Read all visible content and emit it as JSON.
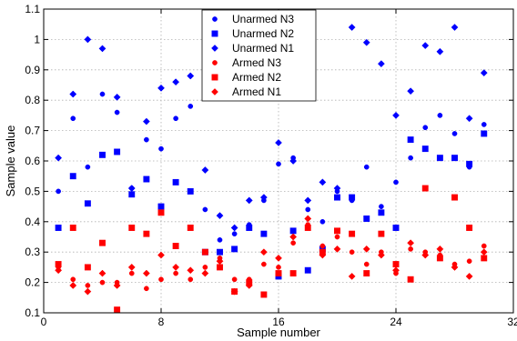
{
  "chart_data": {
    "type": "scatter",
    "title": "",
    "xlabel": "Sample number",
    "ylabel": "Sample value",
    "xlim": [
      0,
      32
    ],
    "ylim": [
      0.1,
      1.1
    ],
    "xticks": [
      0,
      8,
      16,
      24,
      32
    ],
    "yticks": [
      0.1,
      0.2,
      0.3,
      0.4,
      0.5,
      0.6,
      0.7,
      0.8,
      0.9,
      1.0,
      1.1
    ],
    "xtick_labels": [
      "0",
      "8",
      "16",
      "24",
      "32"
    ],
    "ytick_labels": [
      "0.1",
      "0.2",
      "0.3",
      "0.4",
      "0.5",
      "0.6",
      "0.7",
      "0.8",
      "0.9",
      "1",
      "1.1"
    ],
    "grid": true,
    "legend_position": "top-center",
    "series": [
      {
        "name": "Unarmed N3",
        "color": "#0000ff",
        "marker": "circle",
        "x": [
          1,
          2,
          3,
          4,
          5,
          6,
          7,
          8,
          9,
          10,
          11,
          12,
          13,
          14,
          15,
          16,
          17,
          18,
          19,
          20,
          21,
          22,
          23,
          24,
          25,
          26,
          27,
          28,
          29,
          30
        ],
        "y": [
          0.5,
          0.74,
          0.58,
          0.82,
          0.76,
          0.51,
          0.67,
          0.64,
          0.74,
          0.78,
          0.44,
          0.34,
          0.36,
          0.39,
          0.47,
          0.59,
          0.61,
          0.44,
          0.4,
          0.5,
          0.47,
          0.58,
          0.45,
          0.53,
          0.61,
          0.71,
          0.75,
          0.69,
          0.58,
          0.72
        ]
      },
      {
        "name": "Unarmed N2",
        "color": "#0000ff",
        "marker": "square",
        "x": [
          1,
          2,
          3,
          4,
          5,
          6,
          7,
          8,
          9,
          10,
          11,
          12,
          13,
          14,
          15,
          16,
          17,
          18,
          19,
          20,
          21,
          22,
          23,
          24,
          25,
          26,
          27,
          28,
          29,
          30
        ],
        "y": [
          0.38,
          0.55,
          0.46,
          0.62,
          0.63,
          0.49,
          0.54,
          0.45,
          0.53,
          0.5,
          0.3,
          0.3,
          0.31,
          0.38,
          0.36,
          0.22,
          0.37,
          0.24,
          0.31,
          0.48,
          0.48,
          0.41,
          0.43,
          0.38,
          0.67,
          0.64,
          0.61,
          0.61,
          0.59,
          0.69
        ]
      },
      {
        "name": "Unarmed N1",
        "color": "#0000ff",
        "marker": "diamond",
        "x": [
          1,
          2,
          3,
          4,
          5,
          6,
          7,
          8,
          9,
          10,
          11,
          12,
          13,
          14,
          15,
          16,
          17,
          18,
          19,
          20,
          21,
          22,
          23,
          24,
          25,
          26,
          27,
          28,
          29,
          30
        ],
        "y": [
          0.61,
          0.82,
          1.0,
          0.97,
          0.81,
          0.51,
          0.73,
          0.84,
          0.86,
          0.88,
          0.57,
          0.42,
          0.38,
          0.47,
          0.48,
          0.66,
          0.6,
          0.47,
          0.53,
          0.51,
          1.04,
          0.99,
          0.92,
          0.75,
          0.83,
          0.98,
          0.96,
          1.04,
          0.74,
          0.89
        ]
      },
      {
        "name": "Armed N3",
        "color": "#ff0000",
        "marker": "circle",
        "x": [
          1,
          2,
          3,
          4,
          5,
          6,
          7,
          8,
          9,
          10,
          11,
          12,
          13,
          14,
          15,
          16,
          17,
          18,
          19,
          20,
          21,
          22,
          23,
          24,
          25,
          26,
          27,
          28,
          29,
          30
        ],
        "y": [
          0.25,
          0.21,
          0.19,
          0.2,
          0.2,
          0.23,
          0.18,
          0.21,
          0.23,
          0.21,
          0.25,
          0.28,
          0.21,
          0.21,
          0.26,
          0.25,
          0.33,
          0.39,
          0.32,
          0.35,
          0.3,
          0.26,
          0.3,
          0.23,
          0.31,
          0.3,
          0.29,
          0.26,
          0.27,
          0.32
        ]
      },
      {
        "name": "Armed N2",
        "color": "#ff0000",
        "marker": "square",
        "x": [
          1,
          2,
          3,
          4,
          5,
          6,
          7,
          8,
          9,
          10,
          11,
          12,
          13,
          14,
          15,
          16,
          17,
          18,
          19,
          20,
          21,
          22,
          23,
          24,
          25,
          26,
          27,
          28,
          29,
          30
        ],
        "y": [
          0.26,
          0.38,
          0.25,
          0.33,
          0.11,
          0.38,
          0.36,
          0.43,
          0.32,
          0.38,
          0.3,
          0.25,
          0.17,
          0.2,
          0.16,
          0.23,
          0.23,
          0.38,
          0.3,
          0.37,
          0.36,
          0.23,
          0.36,
          0.26,
          0.21,
          0.51,
          0.28,
          0.48,
          0.38,
          0.28
        ]
      },
      {
        "name": "Armed N1",
        "color": "#ff0000",
        "marker": "diamond",
        "x": [
          1,
          2,
          3,
          4,
          5,
          6,
          7,
          8,
          9,
          10,
          11,
          12,
          13,
          14,
          15,
          16,
          17,
          18,
          19,
          20,
          21,
          22,
          23,
          24,
          25,
          26,
          27,
          28,
          29,
          30
        ],
        "y": [
          0.24,
          0.19,
          0.17,
          0.23,
          0.19,
          0.25,
          0.23,
          0.29,
          0.25,
          0.24,
          0.23,
          0.27,
          0.17,
          0.19,
          0.3,
          0.28,
          0.35,
          0.41,
          0.29,
          0.31,
          0.22,
          0.31,
          0.29,
          0.24,
          0.33,
          0.29,
          0.31,
          0.25,
          0.22,
          0.3
        ]
      }
    ]
  }
}
